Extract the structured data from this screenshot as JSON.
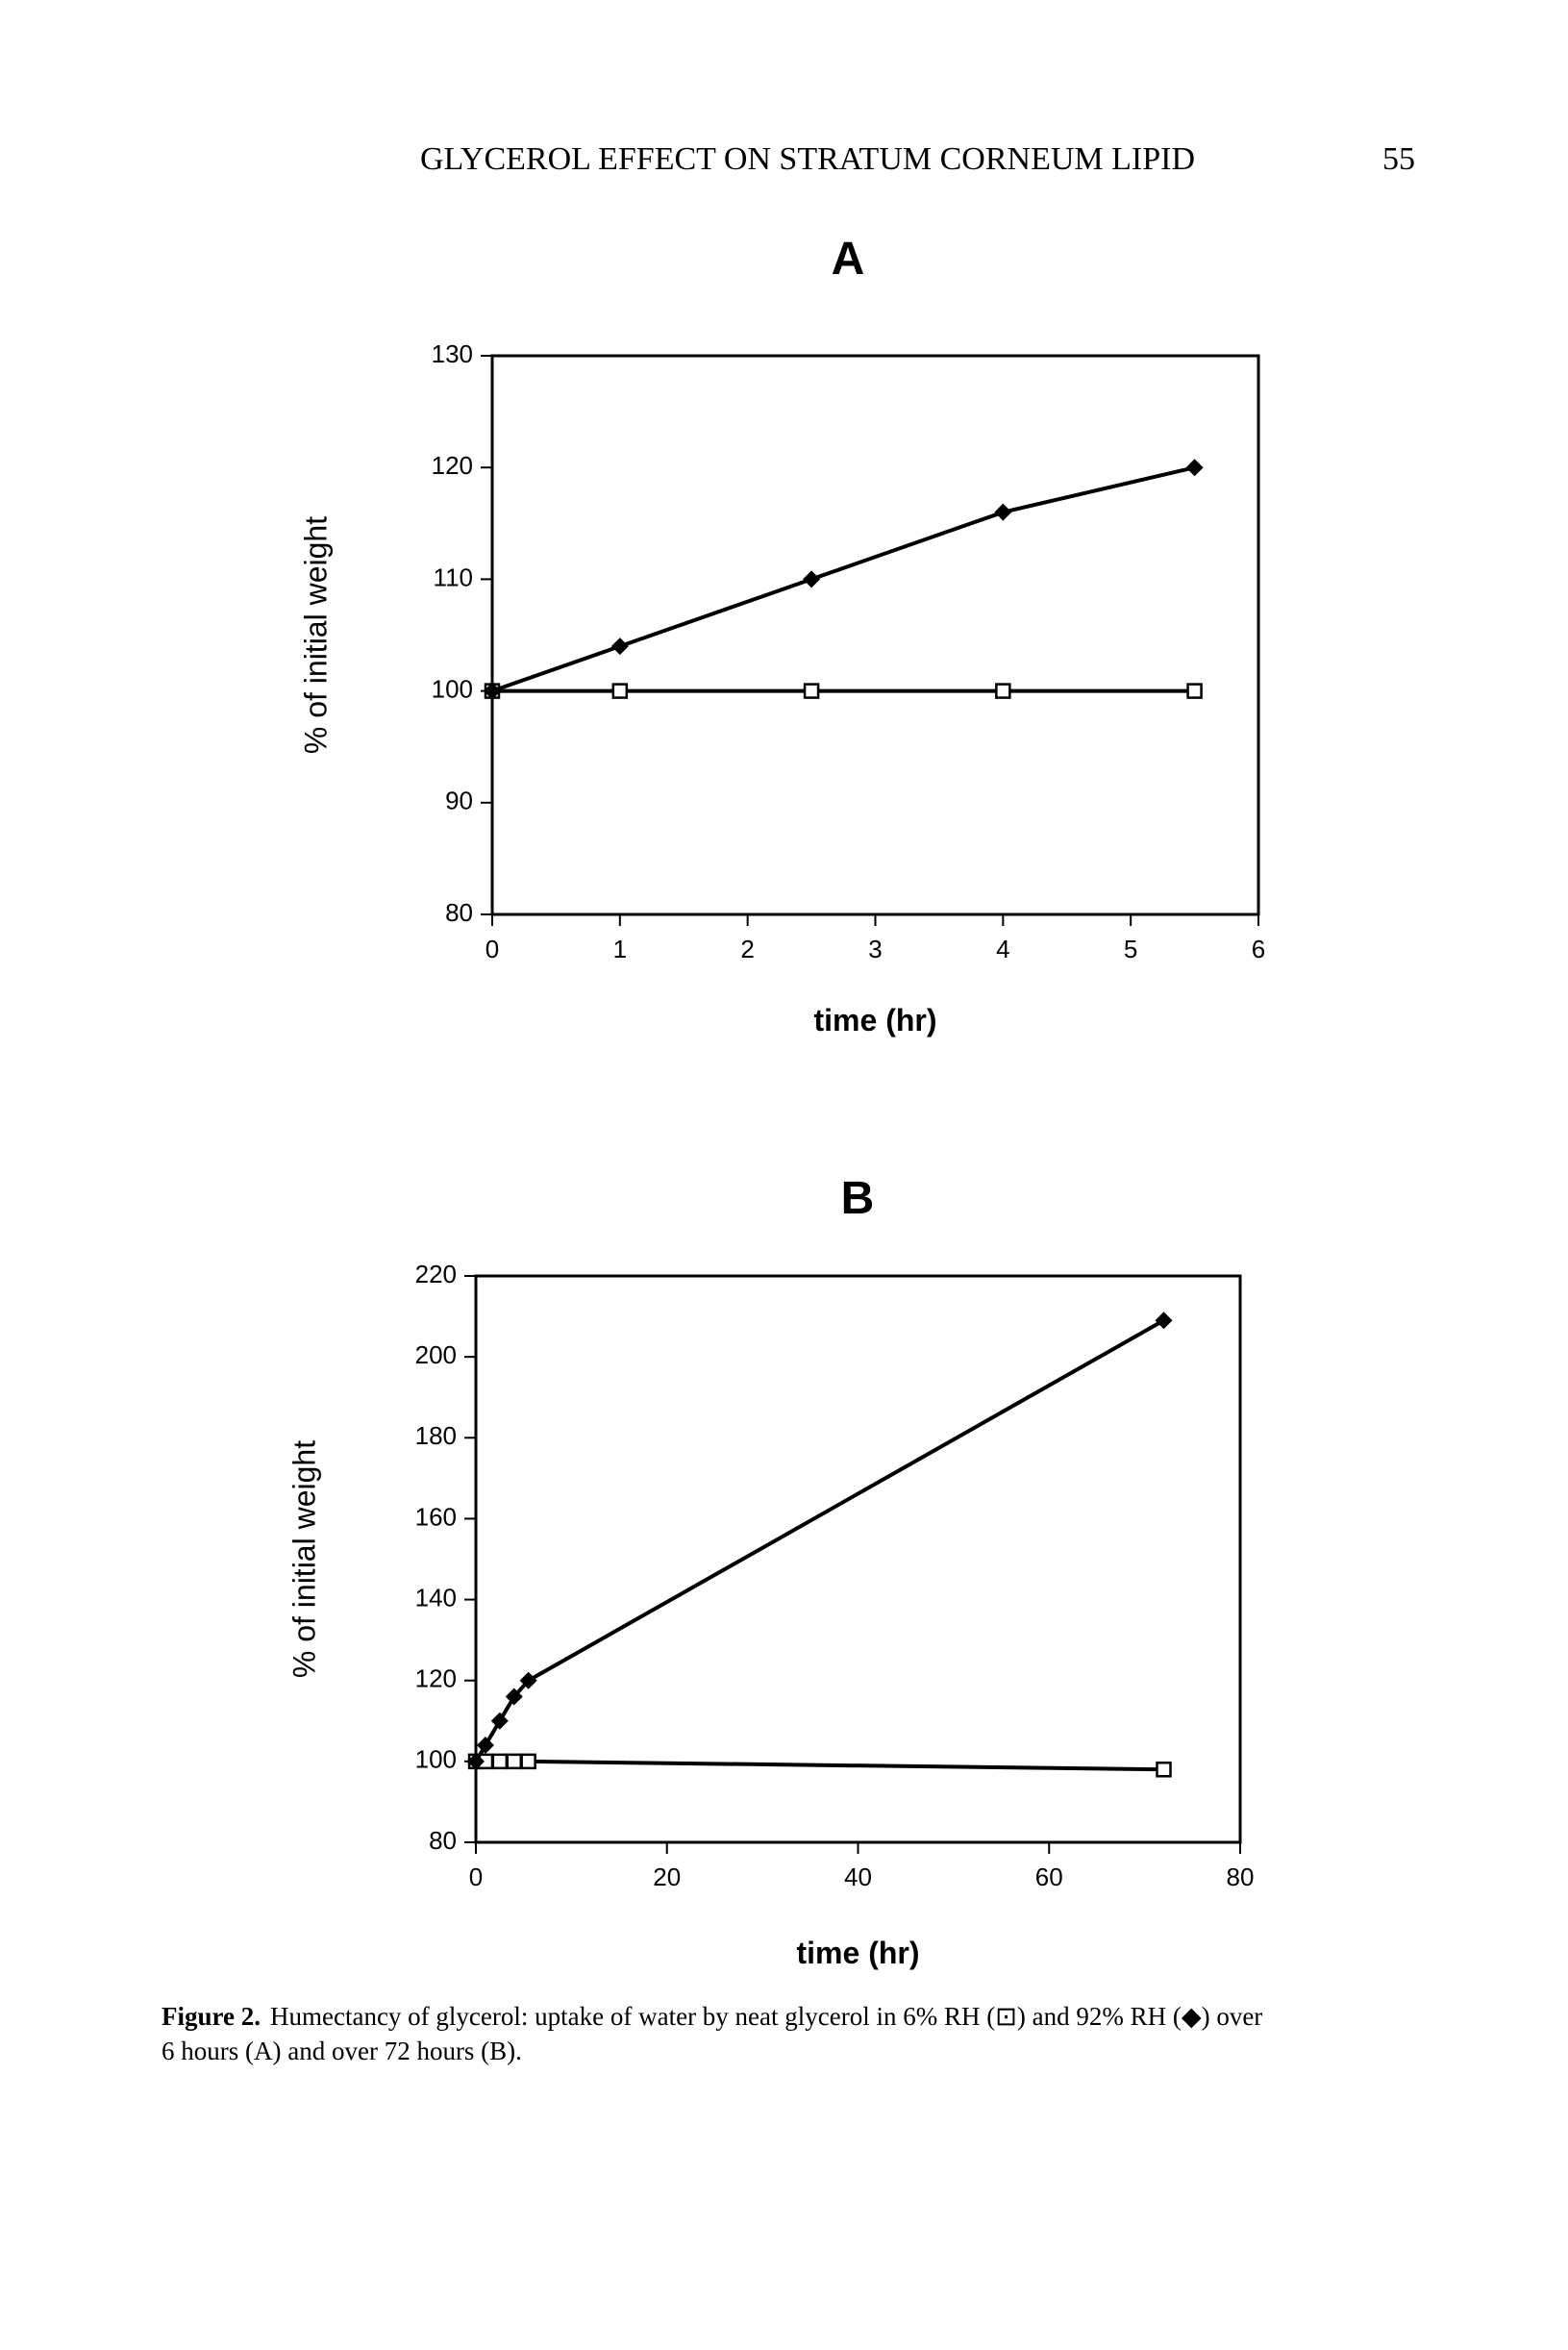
{
  "header": {
    "title": "GLYCEROL EFFECT ON STRATUM CORNEUM LIPID",
    "page_number": "55"
  },
  "chart_data": [
    {
      "type": "line",
      "title": "A",
      "y_label": "% of initial weight",
      "x_label": "time (hr)",
      "xlim": [
        0,
        6
      ],
      "xticks": [
        0,
        1,
        2,
        3,
        4,
        5,
        6
      ],
      "ylim": [
        80,
        130
      ],
      "yticks": [
        80,
        90,
        100,
        110,
        120,
        130
      ],
      "series": [
        {
          "color": "#000000",
          "marker": "square",
          "x": [
            0,
            1,
            2.5,
            4,
            5.5
          ],
          "values": [
            100,
            100,
            100,
            100,
            100
          ]
        },
        {
          "color": "#000000",
          "marker": "diamond",
          "x": [
            0,
            1,
            2.5,
            4,
            5.5
          ],
          "values": [
            100,
            104,
            110,
            116,
            120
          ]
        }
      ]
    },
    {
      "type": "line",
      "title": "B",
      "y_label": "% of initial weight",
      "x_label": "time (hr)",
      "xlim": [
        0,
        80
      ],
      "xticks": [
        0,
        20,
        40,
        60,
        80
      ],
      "ylim": [
        80,
        220
      ],
      "yticks": [
        80,
        100,
        120,
        140,
        160,
        180,
        200,
        220
      ],
      "series": [
        {
          "color": "#000000",
          "marker": "square",
          "x": [
            0,
            1,
            2.5,
            4,
            5.5,
            72
          ],
          "values": [
            100,
            100,
            100,
            100,
            100,
            98
          ]
        },
        {
          "color": "#000000",
          "marker": "diamond",
          "x": [
            0,
            1,
            2.5,
            4,
            5.5,
            72
          ],
          "values": [
            100,
            104,
            110,
            116,
            120,
            209
          ]
        }
      ]
    }
  ],
  "caption": {
    "label": "Figure 2.",
    "lines": [
      "Humectancy of glycerol: uptake of water by neat glycerol in 6% RH (⊡) and 92% RH (◆) over",
      "6 hours (A) and over 72 hours (B)."
    ]
  }
}
